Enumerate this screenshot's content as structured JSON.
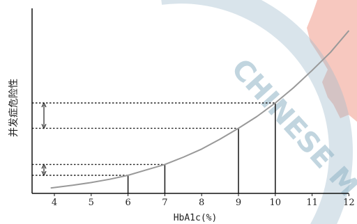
{
  "chart_data": {
    "type": "line",
    "title": "",
    "xlabel": "HbA1c(%)",
    "ylabel": "并发症危险性",
    "xlim": [
      3.5,
      12
    ],
    "xticks": [
      4,
      5,
      6,
      7,
      8,
      9,
      10,
      11,
      12
    ],
    "ylim": [
      0,
      1
    ],
    "grid": false,
    "legend": "none",
    "series": [
      {
        "x": [
          3.9,
          4.5,
          5,
          5.5,
          6,
          6.5,
          7,
          7.5,
          8,
          8.5,
          9,
          9.5,
          10,
          10.5,
          11,
          11.5,
          12
        ],
        "y": [
          0.03,
          0.045,
          0.06,
          0.078,
          0.1,
          0.13,
          0.16,
          0.2,
          0.245,
          0.3,
          0.36,
          0.425,
          0.5,
          0.585,
          0.68,
          0.78,
          0.9
        ]
      }
    ],
    "annotations": {
      "drop_lines_x": [
        6,
        7,
        9,
        10
      ],
      "dashed_levels": [
        {
          "x": 6,
          "y": 0.1
        },
        {
          "x": 7,
          "y": 0.16
        },
        {
          "x": 9,
          "y": 0.36
        },
        {
          "x": 10,
          "y": 0.5
        }
      ],
      "double_arrows": [
        {
          "from": 0.1,
          "to": 0.16
        },
        {
          "from": 0.36,
          "to": 0.5
        }
      ]
    },
    "colors": {
      "curve": "#999999",
      "axis": "#111111",
      "lines": "#222222"
    }
  },
  "watermark": {
    "text": "CHINESE M",
    "colors": {
      "ring": "#9fbccd",
      "map": "#f4b6aa",
      "text": "#8fb3c6"
    }
  }
}
